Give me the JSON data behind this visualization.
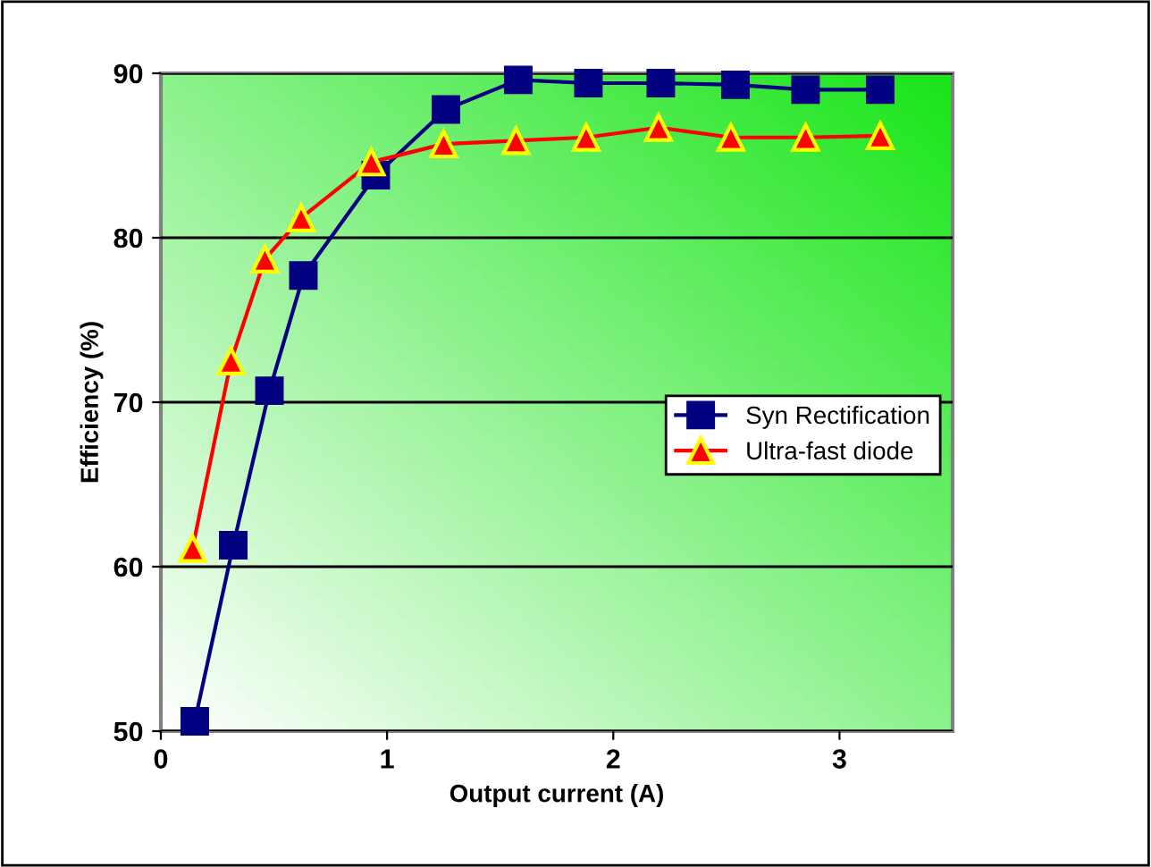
{
  "chart_data": {
    "type": "line",
    "xlabel": "Output current (A)",
    "ylabel": "Efficiency (%)",
    "xlim": [
      0,
      3.5
    ],
    "xticks": [
      0,
      1,
      2,
      3
    ],
    "ylim": [
      50,
      90
    ],
    "yticks": [
      50,
      60,
      70,
      80,
      90
    ],
    "grid": "y",
    "legend": "right",
    "series": [
      {
        "name": "Syn Rectification",
        "color": "#000080",
        "marker": "square",
        "x": [
          0.15,
          0.32,
          0.48,
          0.63,
          0.95,
          1.26,
          1.58,
          1.89,
          2.21,
          2.54,
          2.85,
          3.18
        ],
        "values": [
          50.6,
          61.3,
          70.7,
          77.7,
          83.8,
          87.8,
          89.6,
          89.4,
          89.4,
          89.3,
          89.0,
          89.0
        ]
      },
      {
        "name": "Ultra-fast diode",
        "color": "#ff0000",
        "marker": "triangle",
        "x": [
          0.14,
          0.31,
          0.46,
          0.62,
          0.93,
          1.25,
          1.57,
          1.88,
          2.2,
          2.52,
          2.85,
          3.18
        ],
        "values": [
          61.1,
          72.5,
          78.7,
          81.2,
          84.6,
          85.7,
          85.9,
          86.1,
          86.7,
          86.1,
          86.1,
          86.2
        ]
      }
    ]
  }
}
